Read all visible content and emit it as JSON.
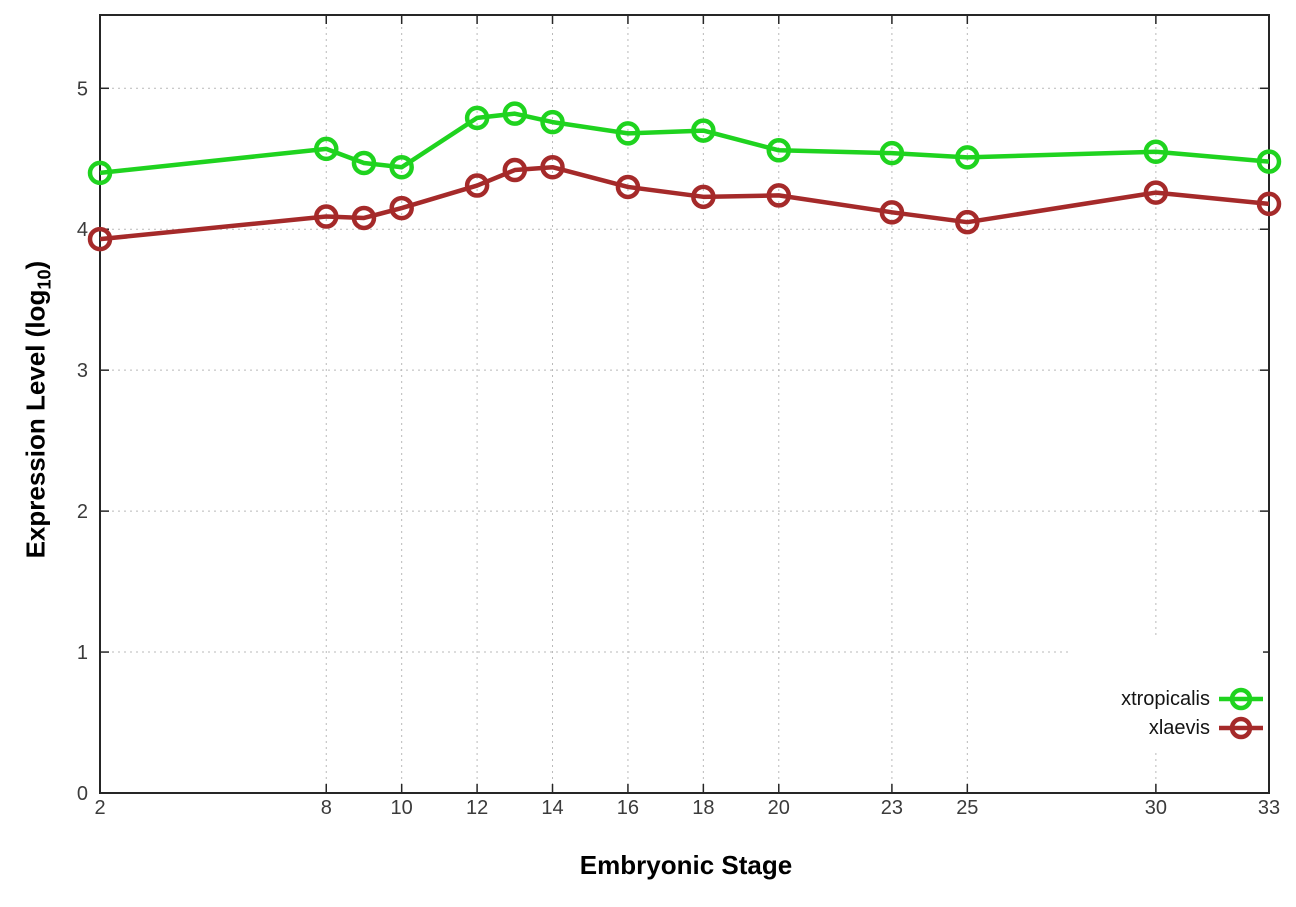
{
  "chart_data": {
    "type": "line",
    "title": "",
    "xlabel": "Embryonic Stage",
    "ylabel": "Expression Level (log10)",
    "ylabel_parts": {
      "pre": "Expression Level (log",
      "sub": "10",
      "post": ")"
    },
    "x": [
      2,
      8,
      9,
      10,
      12,
      13,
      14,
      16,
      18,
      20,
      23,
      25,
      30,
      33
    ],
    "xticks": [
      2,
      8,
      10,
      12,
      14,
      16,
      18,
      20,
      23,
      25,
      30,
      33
    ],
    "yticks": [
      0,
      1,
      2,
      3,
      4,
      5
    ],
    "xlim": [
      2,
      33
    ],
    "ylim": [
      0,
      5.52
    ],
    "grid": true,
    "marker": "open-circle",
    "legend_position": "bottom-right",
    "series": [
      {
        "name": "xtropicalis",
        "color": "#1fd31f",
        "values": [
          4.4,
          4.57,
          4.47,
          4.44,
          4.79,
          4.82,
          4.76,
          4.68,
          4.7,
          4.56,
          4.54,
          4.51,
          4.55,
          4.48
        ]
      },
      {
        "name": "xlaevis",
        "color": "#a52a2a",
        "values": [
          3.93,
          4.09,
          4.08,
          4.15,
          4.31,
          4.42,
          4.44,
          4.3,
          4.23,
          4.24,
          4.12,
          4.05,
          4.26,
          4.18
        ]
      }
    ]
  },
  "colors": {
    "background": "#ffffff",
    "axis_border": "#262626",
    "grid": "#b9b9b9",
    "tick_label": "#3b3b3b"
  }
}
